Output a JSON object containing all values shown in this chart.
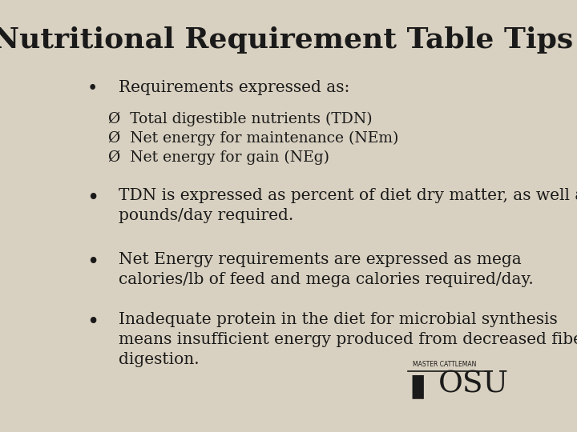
{
  "title": "Nutritional Requirement Table Tips",
  "background_color": "#d8d0c0",
  "text_color": "#1a1a1a",
  "title_fontsize": 26,
  "body_fontsize": 14.5,
  "sub_fontsize": 13.5,
  "bullet1": "Requirements expressed as:",
  "sub_bullets": [
    "Ø  Total digestible nutrients (TDN)",
    "Ø  Net energy for maintenance (NEm)",
    "Ø  Net energy for gain (NEg)"
  ],
  "bullet2": "TDN is expressed as percent of diet dry matter, as well as\npounds/day required.",
  "bullet3": "Net Energy requirements are expressed as mega\ncalories/lb of feed and mega calories required/day.",
  "bullet4": "Inadequate protein in the diet for microbial synthesis\nmeans insufficient energy produced from decreased fiber\ndigestion."
}
